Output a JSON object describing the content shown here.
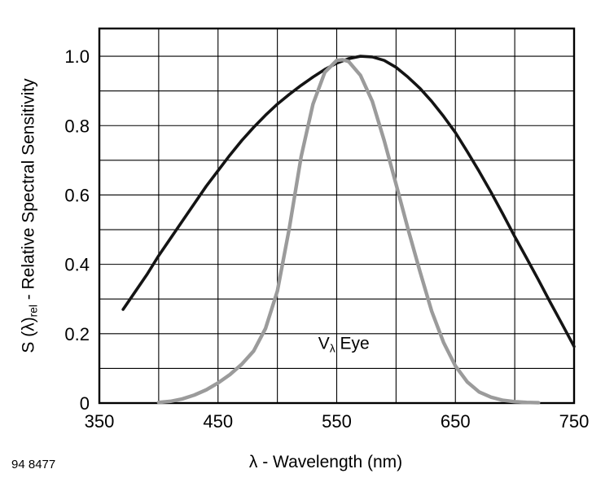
{
  "figure_number": "94 8477",
  "colors": {
    "photodiode_curve": "#141414",
    "eye_curve": "#9b9b9b",
    "grid": "#000000",
    "background": "#ffffff"
  },
  "chart_data": {
    "type": "line",
    "title": "",
    "xlabel_lambda": "λ",
    "xlabel_rest": " - Wavelength (nm)",
    "ylabel_prefix": "S (λ)",
    "ylabel_sub": "rel",
    "ylabel_suffix": " - Relative Spectral Sensitivity",
    "xlim": [
      350,
      750
    ],
    "ylim": [
      0,
      1.08
    ],
    "x_grid_step": 50,
    "y_grid_step": 0.1,
    "grid": "on",
    "legend_position": "none",
    "x_tick_values": [
      350,
      450,
      550,
      650,
      750
    ],
    "x_tick_labels": [
      "350",
      "450",
      "550",
      "650",
      "750"
    ],
    "y_tick_values": [
      0,
      0.2,
      0.4,
      0.6,
      0.8,
      1.0
    ],
    "y_tick_labels": [
      "0",
      "0.2",
      "0.4",
      "0.6",
      "0.8",
      "1.0"
    ],
    "annotation": {
      "prefix": "V",
      "sub": "λ",
      "suffix": " Eye",
      "x": 556,
      "y": 0.17
    },
    "series": [
      {
        "name": "photodiode-relative-spectral-sensitivity",
        "color": "#141414",
        "width": 3.6,
        "x": [
          370,
          380,
          390,
          400,
          410,
          420,
          430,
          440,
          450,
          460,
          470,
          480,
          490,
          500,
          510,
          520,
          530,
          540,
          550,
          560,
          570,
          580,
          590,
          600,
          610,
          620,
          630,
          640,
          650,
          660,
          670,
          680,
          690,
          700,
          710,
          720,
          730,
          740,
          750
        ],
        "y": [
          0.27,
          0.32,
          0.37,
          0.425,
          0.475,
          0.525,
          0.575,
          0.625,
          0.67,
          0.715,
          0.757,
          0.795,
          0.83,
          0.862,
          0.89,
          0.916,
          0.94,
          0.962,
          0.98,
          0.993,
          1.0,
          0.998,
          0.988,
          0.968,
          0.94,
          0.908,
          0.87,
          0.827,
          0.78,
          0.725,
          0.668,
          0.608,
          0.545,
          0.48,
          0.418,
          0.355,
          0.29,
          0.227,
          0.163
        ]
      },
      {
        "name": "v-lambda-eye-sensitivity",
        "color": "#9b9b9b",
        "width": 4.4,
        "x": [
          400,
          410,
          420,
          430,
          440,
          450,
          460,
          470,
          480,
          490,
          500,
          510,
          520,
          530,
          540,
          550,
          555,
          560,
          570,
          580,
          590,
          600,
          610,
          620,
          630,
          640,
          650,
          660,
          670,
          680,
          690,
          700,
          710,
          720
        ],
        "y": [
          0.002,
          0.005,
          0.012,
          0.023,
          0.038,
          0.058,
          0.082,
          0.112,
          0.15,
          0.215,
          0.323,
          0.503,
          0.71,
          0.862,
          0.954,
          0.988,
          0.99,
          0.985,
          0.945,
          0.87,
          0.757,
          0.631,
          0.503,
          0.381,
          0.265,
          0.175,
          0.107,
          0.061,
          0.032,
          0.017,
          0.008,
          0.004,
          0.002,
          0.001
        ]
      }
    ]
  }
}
